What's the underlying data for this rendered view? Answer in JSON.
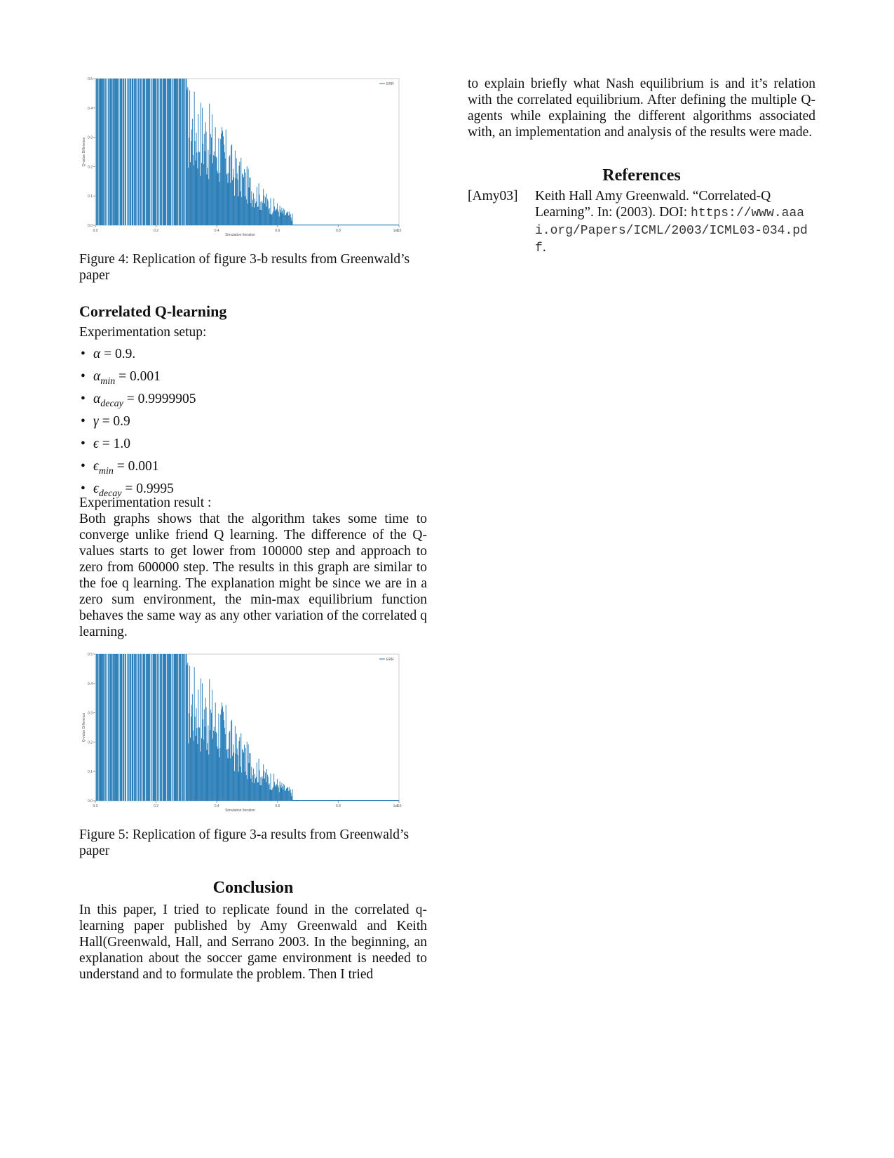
{
  "figure4": {
    "caption": "Figure 4: Replication of figure 3-b results from Greenwald’s paper",
    "chart_data": {
      "type": "bar",
      "xlabel": "Simulation Iteration",
      "ylabel": "Q-value Difference",
      "xlim": [
        0,
        1000000
      ],
      "ylim": [
        0,
        0.5
      ],
      "x_ticks": [
        "0.0",
        "0.2",
        "0.4",
        "0.6",
        "0.8",
        "1.0"
      ],
      "x_scale_label": "1e6",
      "y_ticks": [
        "0.0",
        "0.1",
        "0.2",
        "0.3",
        "0.4",
        "0.5"
      ],
      "legend": "ERR",
      "legend_position": "top-right",
      "color": "#1f77b4",
      "envelope_x": [
        0,
        0.1,
        0.2,
        0.3,
        0.35,
        0.4,
        0.43,
        0.45,
        0.5,
        0.55,
        0.6,
        0.62,
        0.65
      ],
      "envelope_y": [
        0.5,
        0.5,
        0.5,
        0.5,
        0.45,
        0.38,
        0.33,
        0.28,
        0.2,
        0.13,
        0.08,
        0.06,
        0.04
      ]
    }
  },
  "corr": {
    "heading": "Correlated Q-learning",
    "setup_label": "Experimentation setup:",
    "params": [
      {
        "sym": "α",
        "sub": "",
        "val": " = 0.9."
      },
      {
        "sym": "α",
        "sub": "min",
        "val": " = 0.001"
      },
      {
        "sym": "α",
        "sub": "decay",
        "val": " = 0.9999905"
      },
      {
        "sym": "γ",
        "sub": "",
        "val": " = 0.9"
      },
      {
        "sym": "ϵ",
        "sub": "",
        "val": " = 1.0"
      },
      {
        "sym": "ϵ",
        "sub": "min",
        "val": " = 0.001"
      },
      {
        "sym": "ϵ",
        "sub": "decay",
        "val": " = 0.9995"
      }
    ],
    "result_label": "Experimentation result :",
    "result_text": "Both graphs shows that the algorithm takes some time to converge unlike friend Q learning. The difference of the Q-values starts to get lower from 100000 step and approach to zero from 600000 step. The results in this graph are similar to the foe q learning. The explanation might be since we are in a zero sum environment, the min-max equilibrium function behaves the same way as any other variation of the correlated q learning."
  },
  "figure5": {
    "caption": "Figure 5: Replication of figure 3-a results from Greenwald’s paper",
    "chart_data": {
      "type": "bar",
      "xlabel": "Simulation Iteration",
      "ylabel": "Q-value Difference",
      "xlim": [
        0,
        1000000
      ],
      "ylim": [
        0,
        0.5
      ],
      "x_ticks": [
        "0.0",
        "0.2",
        "0.4",
        "0.6",
        "0.8",
        "1.0"
      ],
      "x_scale_label": "1e6",
      "y_ticks": [
        "0.0",
        "0.1",
        "0.2",
        "0.3",
        "0.4",
        "0.5"
      ],
      "legend": "ERR",
      "legend_position": "top-right",
      "color": "#1f77b4",
      "envelope_x": [
        0,
        0.1,
        0.2,
        0.3,
        0.35,
        0.4,
        0.43,
        0.45,
        0.5,
        0.55,
        0.6,
        0.62,
        0.65
      ],
      "envelope_y": [
        0.5,
        0.5,
        0.5,
        0.5,
        0.45,
        0.38,
        0.33,
        0.28,
        0.2,
        0.13,
        0.08,
        0.06,
        0.04
      ]
    }
  },
  "conclusion": {
    "heading": "Conclusion",
    "text": "In this paper, I tried to replicate found in the correlated q-learning paper published by Amy Greenwald and Keith Hall(Greenwald, Hall, and Serrano 2003. In the beginning, an explanation about the soccer game environment is needed to understand and to formulate the problem. Then I tried",
    "continuation": "to explain briefly what Nash equilibrium is and it’s relation with the correlated equilibrium. After defining the multiple Q-agents while explaining the different algorithms associated with, an implementation and analysis of the results were made."
  },
  "references": {
    "heading": "References",
    "items": [
      {
        "key": "[Amy03]",
        "text": "Keith Hall Amy Greenwald. “Correlated-Q Learning”. In: (2003).",
        "doi_label": "DOI",
        "url": "https://www.aaai.org/Papers/ICML/2003/ICML03-034.pdf"
      }
    ]
  }
}
